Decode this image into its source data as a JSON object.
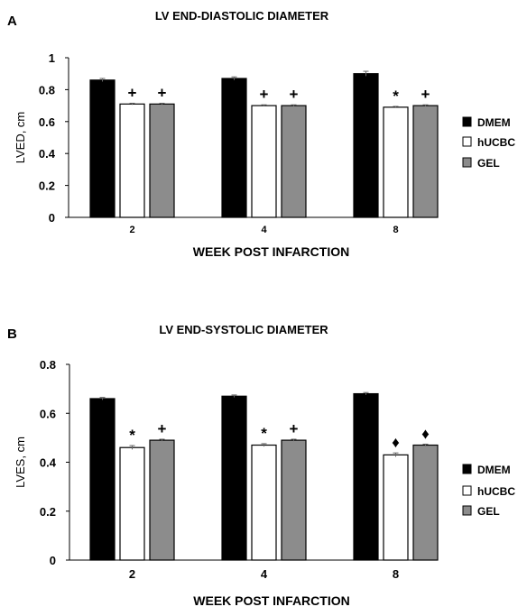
{
  "chart_data": [
    {
      "panel": "A",
      "type": "bar",
      "title": "LV END-DIASTOLIC DIAMETER",
      "xlabel": "WEEK POST INFARCTION",
      "ylabel": "LVED, cm",
      "ylim": [
        0,
        1
      ],
      "yticks": [
        "0",
        "0.2",
        "0.4",
        "0.6",
        "0.8",
        "1"
      ],
      "categories": [
        "2",
        "4",
        "8"
      ],
      "legend_position": "right",
      "series": [
        {
          "name": "DMEM",
          "color": "#000000",
          "values": [
            0.86,
            0.87,
            0.9
          ],
          "errors": [
            0.01,
            0.01,
            0.015
          ],
          "markers": [
            "",
            "",
            ""
          ]
        },
        {
          "name": "hUCBC",
          "color": "#ffffff",
          "values": [
            0.71,
            0.7,
            0.69
          ],
          "errors": [
            0.005,
            0.005,
            0.005
          ],
          "markers": [
            "+",
            "+",
            "*"
          ]
        },
        {
          "name": "GEL",
          "color": "#8c8c8c",
          "values": [
            0.71,
            0.7,
            0.7
          ],
          "errors": [
            0.005,
            0.005,
            0.005
          ],
          "markers": [
            "+",
            "+",
            "+"
          ]
        }
      ]
    },
    {
      "panel": "B",
      "type": "bar",
      "title": "LV END-SYSTOLIC DIAMETER",
      "xlabel": "WEEK POST INFARCTION",
      "ylabel": "LVES, cm",
      "ylim": [
        0,
        0.8
      ],
      "yticks": [
        "0",
        "0.2",
        "0.4",
        "0.6",
        "0.8"
      ],
      "categories": [
        "2",
        "4",
        "8"
      ],
      "legend_position": "right",
      "series": [
        {
          "name": "DMEM",
          "color": "#000000",
          "values": [
            0.66,
            0.67,
            0.68
          ],
          "errors": [
            0.005,
            0.005,
            0.005
          ],
          "markers": [
            "",
            "",
            ""
          ]
        },
        {
          "name": "hUCBC",
          "color": "#ffffff",
          "values": [
            0.46,
            0.47,
            0.43
          ],
          "errors": [
            0.008,
            0.006,
            0.008
          ],
          "markers": [
            "*",
            "*",
            "♦"
          ]
        },
        {
          "name": "GEL",
          "color": "#8c8c8c",
          "values": [
            0.49,
            0.49,
            0.47
          ],
          "errors": [
            0.004,
            0.004,
            0.004
          ],
          "markers": [
            "+",
            "+",
            "♦"
          ]
        }
      ]
    }
  ]
}
